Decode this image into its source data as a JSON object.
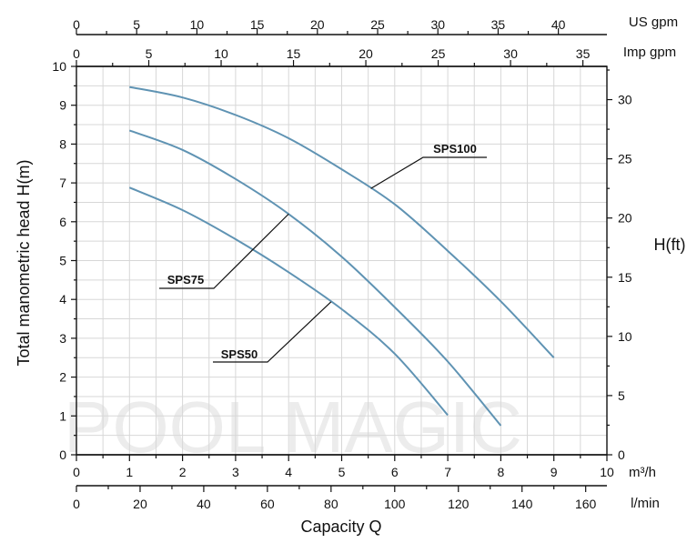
{
  "chart_data": {
    "type": "line",
    "title": "",
    "xlabel": "Capacity Q",
    "ylabel": "Total manometric head H(m)",
    "xlim": [
      0,
      10
    ],
    "ylim": [
      0,
      10
    ],
    "grid": true,
    "series": [
      {
        "name": "SPS100",
        "x": [
          1,
          2,
          3,
          4,
          5,
          6,
          7,
          8,
          9
        ],
        "y": [
          9.47,
          9.2,
          8.75,
          8.15,
          7.35,
          6.45,
          5.25,
          3.95,
          2.5
        ]
      },
      {
        "name": "SPS75",
        "x": [
          1,
          2,
          3,
          4,
          5,
          6,
          7,
          8
        ],
        "y": [
          8.35,
          7.85,
          7.1,
          6.2,
          5.1,
          3.8,
          2.4,
          0.75
        ]
      },
      {
        "name": "SPS50",
        "x": [
          1,
          2,
          3,
          4,
          5,
          6,
          7
        ],
        "y": [
          6.88,
          6.3,
          5.55,
          4.7,
          3.75,
          2.6,
          1.02
        ]
      }
    ],
    "axes": {
      "bottom_primary": {
        "unit_label": "m³/h",
        "ticks": [
          "0",
          "1",
          "2",
          "3",
          "4",
          "5",
          "6",
          "7",
          "8",
          "9",
          "10"
        ]
      },
      "bottom_secondary": {
        "unit_label": "l/min",
        "ticks": [
          "0",
          "20",
          "40",
          "60",
          "80",
          "100",
          "120",
          "140",
          "160"
        ]
      },
      "top_us": {
        "unit_label": "US gpm",
        "ticks": [
          "0",
          "5",
          "10",
          "15",
          "20",
          "25",
          "30",
          "35",
          "40"
        ]
      },
      "top_imp": {
        "unit_label": "Imp gpm",
        "ticks": [
          "0",
          "5",
          "10",
          "15",
          "20",
          "25",
          "30",
          "35"
        ]
      },
      "left": {
        "ticks": [
          "0",
          "1",
          "2",
          "3",
          "4",
          "5",
          "6",
          "7",
          "8",
          "9",
          "10"
        ]
      },
      "right": {
        "unit_label": "H(ft)",
        "ticks": [
          "0",
          "5",
          "10",
          "15",
          "20",
          "25",
          "30"
        ]
      }
    },
    "labels": [
      "SPS100",
      "SPS75",
      "SPS50"
    ],
    "watermark": "POOL MAGIC",
    "colors": {
      "curve": "#5f93b3",
      "grid": "#d7d7d7"
    }
  }
}
